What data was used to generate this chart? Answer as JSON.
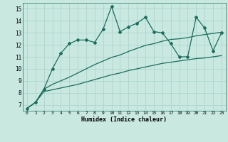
{
  "xlabel": "Humidex (Indice chaleur)",
  "bg_color": "#c8e8e0",
  "grid_color": "#b0d8d0",
  "line_color": "#1a6e5e",
  "x_values": [
    0,
    1,
    2,
    3,
    4,
    5,
    6,
    7,
    8,
    9,
    10,
    11,
    12,
    13,
    14,
    15,
    16,
    17,
    18,
    19,
    20,
    21,
    22,
    23
  ],
  "series_jagged": [
    6.7,
    7.2,
    8.3,
    10.0,
    11.3,
    12.1,
    12.4,
    12.4,
    12.2,
    13.3,
    15.2,
    13.1,
    13.5,
    13.8,
    14.3,
    13.1,
    13.0,
    12.1,
    11.0,
    11.0,
    14.3,
    13.4,
    11.5,
    13.0
  ],
  "series_smooth1": [
    6.7,
    7.2,
    8.3,
    8.7,
    9.0,
    9.3,
    9.65,
    10.0,
    10.35,
    10.65,
    10.95,
    11.15,
    11.45,
    11.7,
    11.95,
    12.1,
    12.3,
    12.45,
    12.5,
    12.6,
    12.75,
    12.85,
    12.95,
    13.05
  ],
  "series_smooth2": [
    6.7,
    7.2,
    8.1,
    8.25,
    8.4,
    8.55,
    8.7,
    8.9,
    9.1,
    9.3,
    9.5,
    9.65,
    9.85,
    10.0,
    10.15,
    10.3,
    10.45,
    10.55,
    10.65,
    10.75,
    10.85,
    10.9,
    11.0,
    11.1
  ],
  "ylim": [
    6.5,
    15.5
  ],
  "xlim": [
    -0.5,
    23.5
  ],
  "yticks": [
    7,
    8,
    9,
    10,
    11,
    12,
    13,
    14,
    15
  ],
  "xticks": [
    0,
    1,
    2,
    3,
    4,
    5,
    6,
    7,
    8,
    9,
    10,
    11,
    12,
    13,
    14,
    15,
    16,
    17,
    18,
    19,
    20,
    21,
    22,
    23
  ]
}
